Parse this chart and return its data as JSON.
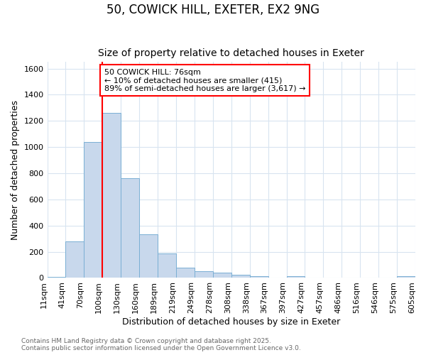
{
  "title1": "50, COWICK HILL, EXETER, EX2 9NG",
  "title2": "Size of property relative to detached houses in Exeter",
  "xlabel": "Distribution of detached houses by size in Exeter",
  "ylabel": "Number of detached properties",
  "bar_color": "#c8d8ec",
  "bar_edge_color": "#7aafd4",
  "bin_labels": [
    "11sqm",
    "41sqm",
    "70sqm",
    "100sqm",
    "130sqm",
    "160sqm",
    "189sqm",
    "219sqm",
    "249sqm",
    "278sqm",
    "308sqm",
    "338sqm",
    "367sqm",
    "397sqm",
    "427sqm",
    "457sqm",
    "486sqm",
    "516sqm",
    "546sqm",
    "575sqm",
    "605sqm"
  ],
  "bar_heights": [
    10,
    280,
    1040,
    1260,
    760,
    335,
    185,
    80,
    50,
    40,
    25,
    15,
    0,
    12,
    0,
    5,
    0,
    0,
    0,
    12
  ],
  "ylim": [
    0,
    1650
  ],
  "yticks": [
    0,
    200,
    400,
    600,
    800,
    1000,
    1200,
    1400,
    1600
  ],
  "vline_bin_index": 2.5,
  "annotation_text": "50 COWICK HILL: 76sqm\n← 10% of detached houses are smaller (415)\n89% of semi-detached houses are larger (3,617) →",
  "annotation_box_color": "white",
  "annotation_box_edge_color": "red",
  "vline_color": "red",
  "footer_text": "Contains HM Land Registry data © Crown copyright and database right 2025.\nContains public sector information licensed under the Open Government Licence v3.0.",
  "bg_color": "#ffffff",
  "grid_color": "#d8e4f0",
  "title_fontsize": 12,
  "subtitle_fontsize": 10,
  "axis_label_fontsize": 9,
  "tick_fontsize": 8,
  "annotation_fontsize": 8,
  "footer_fontsize": 6.5
}
